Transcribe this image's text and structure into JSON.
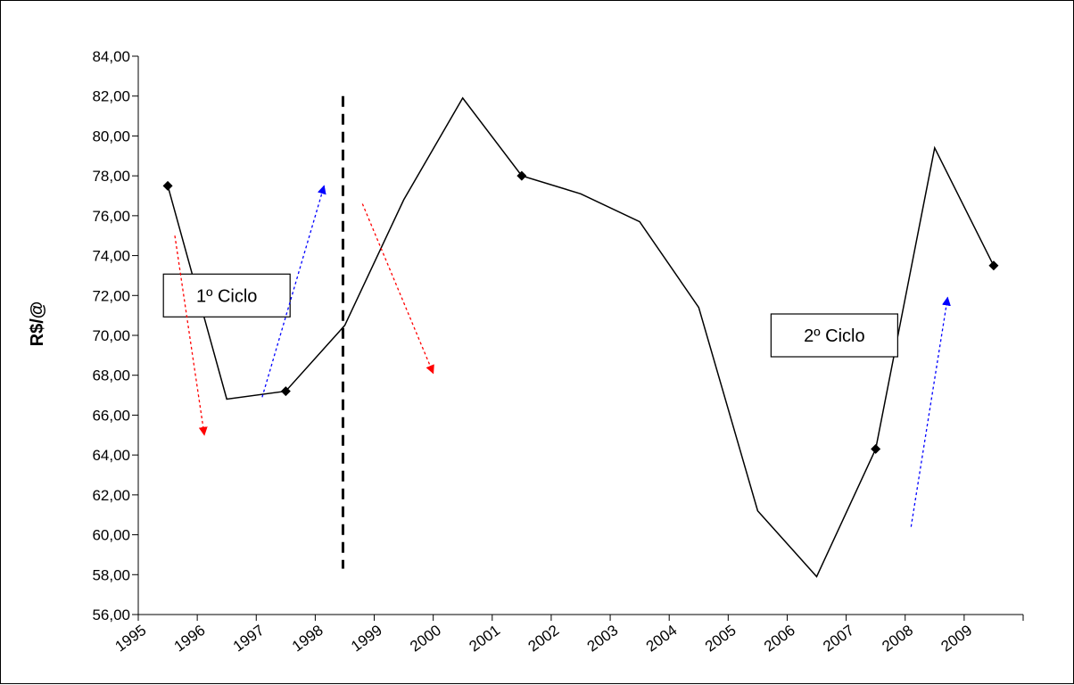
{
  "chart_data": {
    "type": "line",
    "title": "",
    "xlabel": "",
    "ylabel": "R$/@",
    "categories": [
      "1995",
      "1996",
      "1997",
      "1998",
      "1999",
      "2000",
      "2001",
      "2002",
      "2003",
      "2004",
      "2005",
      "2006",
      "2007",
      "2008",
      "2009"
    ],
    "series": [
      {
        "values": [
          77.5,
          66.8,
          67.2,
          70.5,
          76.8,
          81.9,
          78.0,
          77.1,
          75.7,
          71.4,
          61.2,
          57.9,
          64.3,
          79.4,
          73.5
        ],
        "marked": [
          true,
          false,
          true,
          false,
          false,
          false,
          true,
          false,
          false,
          false,
          false,
          false,
          true,
          false,
          true
        ],
        "color": "#000000"
      }
    ],
    "ylim": [
      56,
      84
    ],
    "ystep": 2,
    "ytick_labels": [
      "56,00",
      "58,00",
      "60,00",
      "62,00",
      "64,00",
      "66,00",
      "68,00",
      "70,00",
      "72,00",
      "74,00",
      "76,00",
      "78,00",
      "80,00",
      "82,00",
      "84,00"
    ],
    "grid": false,
    "annotations": [
      {
        "type": "label",
        "text": "1º Ciclo",
        "x": 1.0,
        "y": 72.0
      },
      {
        "type": "label",
        "text": "2º Ciclo",
        "x": 11.3,
        "y": 70.0
      },
      {
        "type": "arrow",
        "color": "#ff0000",
        "from": [
          0.12,
          75.0
        ],
        "to": [
          0.62,
          65.0
        ]
      },
      {
        "type": "arrow",
        "color": "#0000ff",
        "from": [
          1.6,
          66.9
        ],
        "to": [
          2.65,
          77.5
        ]
      },
      {
        "type": "arrow",
        "color": "#ff0000",
        "from": [
          3.3,
          76.6
        ],
        "to": [
          4.5,
          68.1
        ]
      },
      {
        "type": "arrow",
        "color": "#0000ff",
        "from": [
          12.6,
          60.4
        ],
        "to": [
          13.22,
          71.9
        ]
      },
      {
        "type": "divider",
        "color": "#000000",
        "x": 2.97,
        "y_from": 58.3,
        "y_to": 82.0
      }
    ],
    "colors": {
      "line": "#000000",
      "red_arrow": "#ff0000",
      "blue_arrow": "#0000ff",
      "divider": "#000000"
    }
  }
}
